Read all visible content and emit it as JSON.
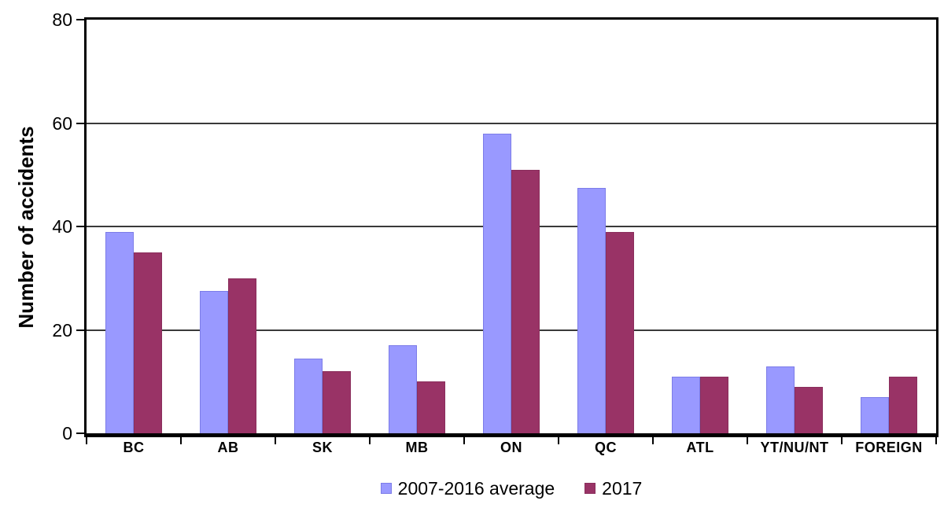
{
  "chart_data": {
    "type": "bar",
    "title": "",
    "xlabel": "",
    "ylabel": "Number of accidents",
    "ylim": [
      0,
      80
    ],
    "yticks": [
      0,
      20,
      40,
      60,
      80
    ],
    "grid": "horizontal",
    "legend_position": "bottom-center",
    "categories": [
      "BC",
      "AB",
      "SK",
      "MB",
      "ON",
      "QC",
      "ATL",
      "YT/NU/NT",
      "FOREIGN"
    ],
    "series": [
      {
        "name": "2007-2016 average",
        "color": "#9999FF",
        "border_color": "#7C7CE8",
        "values": [
          39,
          27.5,
          14.5,
          17,
          58,
          47.5,
          11,
          13,
          7
        ]
      },
      {
        "name": "2017",
        "color": "#993366",
        "border_color": "#8A2E5C",
        "values": [
          35,
          30,
          12,
          10,
          51,
          39,
          11,
          9,
          11
        ]
      }
    ]
  },
  "colors": {
    "axis": "#000000",
    "gridline": "#3a3a3a",
    "text": "#000000",
    "background": "#FFFFFF"
  }
}
